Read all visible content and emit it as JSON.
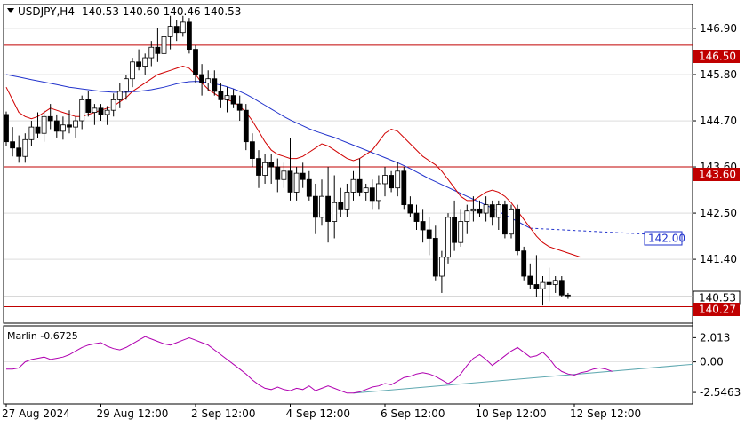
{
  "header": {
    "symbol_text": "USDJPY,H4",
    "ohlc_text": "140.53 140.60 140.46 140.53"
  },
  "indicator": {
    "label_text": "Marlin -0.6725",
    "ticks": [
      "2.013",
      "0.00",
      "-2.5463"
    ],
    "tick_values": [
      2.013,
      0.0,
      -2.5463
    ],
    "ylim": [
      -3.5,
      3.0
    ],
    "line_color": "#b000b0",
    "trend_color": "#5fa8b0",
    "values": [
      -0.6,
      -0.6,
      -0.5,
      0.0,
      0.2,
      0.3,
      0.4,
      0.2,
      0.3,
      0.4,
      0.6,
      0.9,
      1.2,
      1.4,
      1.5,
      1.6,
      1.3,
      1.1,
      1.0,
      1.2,
      1.5,
      1.8,
      2.1,
      1.9,
      1.7,
      1.5,
      1.4,
      1.6,
      1.8,
      2.0,
      1.8,
      1.6,
      1.4,
      1.0,
      0.6,
      0.2,
      -0.2,
      -0.6,
      -1.0,
      -1.5,
      -1.9,
      -2.2,
      -2.3,
      -2.1,
      -2.3,
      -2.4,
      -2.2,
      -2.3,
      -2.0,
      -2.4,
      -2.2,
      -2.0,
      -2.2,
      -2.4,
      -2.6,
      -2.6,
      -2.5,
      -2.3,
      -2.1,
      -2.0,
      -1.8,
      -1.9,
      -1.6,
      -1.3,
      -1.2,
      -1.0,
      -0.9,
      -1.0,
      -1.2,
      -1.5,
      -1.8,
      -1.5,
      -1.0,
      -0.3,
      0.3,
      0.6,
      0.2,
      -0.3,
      0.1,
      0.5,
      0.9,
      1.2,
      0.8,
      0.4,
      0.5,
      0.8,
      0.3,
      -0.4,
      -0.8,
      -1.0,
      -1.1,
      -0.9,
      -0.8,
      -0.6,
      -0.5,
      -0.6,
      -0.8
    ]
  },
  "labels": {
    "level_146_50": "146.50",
    "level_143_60": "143.60",
    "level_142_00": "142.00",
    "level_140_27": "140.27",
    "current_price": "140.53"
  },
  "colors": {
    "background": "#ffffff",
    "grid": "#c8c8c8",
    "bull": "#ffffff",
    "bear": "#000000",
    "fast_ma": "#d00000",
    "slow_ma": "#2233cc",
    "level_line": "#c00000",
    "target_label": "#2233cc"
  },
  "chart_data": {
    "type": "candlestick",
    "symbol": "USDJPY",
    "timeframe": "H4",
    "ylim": [
      139.88,
      147.47
    ],
    "y_ticks": [
      146.9,
      145.8,
      144.7,
      143.6,
      142.5,
      141.4
    ],
    "x_tick_labels": [
      "27 Aug 2024",
      "29 Aug 12:00",
      "2 Sep 12:00",
      "4 Sep 12:00",
      "6 Sep 12:00",
      "10 Sep 12:00",
      "12 Sep 12:00"
    ],
    "x_tick_index": [
      0,
      15,
      30,
      45,
      60,
      75,
      90
    ],
    "horizontal_levels": [
      146.5,
      143.6,
      140.27
    ],
    "target_level": 142.0,
    "current_price": 140.53,
    "candles": [
      [
        144.85,
        144.92,
        144.1,
        144.2
      ],
      [
        144.2,
        144.55,
        143.85,
        144.05
      ],
      [
        144.05,
        144.35,
        143.7,
        143.85
      ],
      [
        143.85,
        144.4,
        143.7,
        144.25
      ],
      [
        144.25,
        144.7,
        144.1,
        144.55
      ],
      [
        144.55,
        144.9,
        144.3,
        144.4
      ],
      [
        144.4,
        144.95,
        144.2,
        144.8
      ],
      [
        144.8,
        145.1,
        144.5,
        144.7
      ],
      [
        144.7,
        144.85,
        144.3,
        144.45
      ],
      [
        144.45,
        144.8,
        144.25,
        144.6
      ],
      [
        144.6,
        144.95,
        144.4,
        144.55
      ],
      [
        144.55,
        144.8,
        144.3,
        144.7
      ],
      [
        144.7,
        145.3,
        144.5,
        145.2
      ],
      [
        145.2,
        145.4,
        144.8,
        144.9
      ],
      [
        144.9,
        145.1,
        144.6,
        145.0
      ],
      [
        145.0,
        145.1,
        144.7,
        144.85
      ],
      [
        144.85,
        145.05,
        144.6,
        144.95
      ],
      [
        144.95,
        145.35,
        144.8,
        145.2
      ],
      [
        145.2,
        145.6,
        145.0,
        145.4
      ],
      [
        145.4,
        145.8,
        145.2,
        145.7
      ],
      [
        145.7,
        146.2,
        145.5,
        146.1
      ],
      [
        146.1,
        146.4,
        145.9,
        146.0
      ],
      [
        146.0,
        146.3,
        145.8,
        146.2
      ],
      [
        146.2,
        146.6,
        146.0,
        146.45
      ],
      [
        146.45,
        146.9,
        146.1,
        146.3
      ],
      [
        146.3,
        146.8,
        146.1,
        146.7
      ],
      [
        146.7,
        147.2,
        146.4,
        146.95
      ],
      [
        146.95,
        147.1,
        146.6,
        146.8
      ],
      [
        146.8,
        147.2,
        146.7,
        147.05
      ],
      [
        147.05,
        147.15,
        146.3,
        146.4
      ],
      [
        146.4,
        146.5,
        145.6,
        145.8
      ],
      [
        145.8,
        146.05,
        145.3,
        145.6
      ],
      [
        145.6,
        145.9,
        145.4,
        145.7
      ],
      [
        145.7,
        145.9,
        145.3,
        145.4
      ],
      [
        145.4,
        145.6,
        145.0,
        145.2
      ],
      [
        145.2,
        145.5,
        144.9,
        145.3
      ],
      [
        145.3,
        145.45,
        145.0,
        145.1
      ],
      [
        145.1,
        145.3,
        144.7,
        144.95
      ],
      [
        144.95,
        145.1,
        144.0,
        144.2
      ],
      [
        144.2,
        144.4,
        143.6,
        143.8
      ],
      [
        143.8,
        144.0,
        143.1,
        143.4
      ],
      [
        143.4,
        143.9,
        143.2,
        143.7
      ],
      [
        143.7,
        143.9,
        143.2,
        143.6
      ],
      [
        143.6,
        143.8,
        143.0,
        143.3
      ],
      [
        143.3,
        143.7,
        143.1,
        143.5
      ],
      [
        143.5,
        144.3,
        142.8,
        143.0
      ],
      [
        143.0,
        143.6,
        142.8,
        143.45
      ],
      [
        143.45,
        143.7,
        143.1,
        143.3
      ],
      [
        143.3,
        143.5,
        142.8,
        142.9
      ],
      [
        142.9,
        143.2,
        142.0,
        142.4
      ],
      [
        142.4,
        143.3,
        142.2,
        142.9
      ],
      [
        142.9,
        143.6,
        141.8,
        142.3
      ],
      [
        142.3,
        143.4,
        141.9,
        142.75
      ],
      [
        142.75,
        143.1,
        142.4,
        142.6
      ],
      [
        142.6,
        143.2,
        142.4,
        143.0
      ],
      [
        143.0,
        143.5,
        142.8,
        143.3
      ],
      [
        143.3,
        143.8,
        142.9,
        143.0
      ],
      [
        143.0,
        143.2,
        142.8,
        143.1
      ],
      [
        143.1,
        143.3,
        142.6,
        142.8
      ],
      [
        142.8,
        143.4,
        142.6,
        143.2
      ],
      [
        143.2,
        143.6,
        142.9,
        143.4
      ],
      [
        143.4,
        143.5,
        143.0,
        143.1
      ],
      [
        143.1,
        143.7,
        142.9,
        143.5
      ],
      [
        143.5,
        143.6,
        142.6,
        142.7
      ],
      [
        142.7,
        142.9,
        142.4,
        142.5
      ],
      [
        142.5,
        142.7,
        142.1,
        142.3
      ],
      [
        142.3,
        142.6,
        141.8,
        142.1
      ],
      [
        142.1,
        142.4,
        141.5,
        141.9
      ],
      [
        141.9,
        142.2,
        140.9,
        141.0
      ],
      [
        141.0,
        141.6,
        140.6,
        141.45
      ],
      [
        141.45,
        142.5,
        141.3,
        142.4
      ],
      [
        142.4,
        142.8,
        141.6,
        141.8
      ],
      [
        141.8,
        142.6,
        141.7,
        142.3
      ],
      [
        142.3,
        142.7,
        142.0,
        142.55
      ],
      [
        142.55,
        142.9,
        142.3,
        142.6
      ],
      [
        142.6,
        142.8,
        142.4,
        142.5
      ],
      [
        142.5,
        142.9,
        142.3,
        142.7
      ],
      [
        142.7,
        142.8,
        142.2,
        142.4
      ],
      [
        142.4,
        142.8,
        142.1,
        142.7
      ],
      [
        142.7,
        142.8,
        141.9,
        142.0
      ],
      [
        142.0,
        142.7,
        141.9,
        142.6
      ],
      [
        142.6,
        142.7,
        141.5,
        141.6
      ],
      [
        141.6,
        141.7,
        140.9,
        141.0
      ],
      [
        141.0,
        141.3,
        140.7,
        140.8
      ],
      [
        140.8,
        141.5,
        140.5,
        140.7
      ],
      [
        140.7,
        141.0,
        140.3,
        140.85
      ],
      [
        140.85,
        141.2,
        140.4,
        140.8
      ],
      [
        140.8,
        141.0,
        140.6,
        140.9
      ],
      [
        140.9,
        141.0,
        140.5,
        140.55
      ],
      [
        140.55,
        140.6,
        140.46,
        140.53
      ]
    ],
    "ma_fast": [
      145.5,
      145.2,
      144.9,
      144.8,
      144.75,
      144.8,
      144.9,
      145.0,
      144.95,
      144.9,
      144.85,
      144.8,
      144.8,
      144.85,
      144.9,
      144.95,
      145.0,
      145.05,
      145.15,
      145.25,
      145.4,
      145.5,
      145.6,
      145.7,
      145.8,
      145.85,
      145.9,
      145.95,
      146.0,
      145.95,
      145.8,
      145.6,
      145.45,
      145.35,
      145.25,
      145.2,
      145.15,
      145.05,
      144.9,
      144.7,
      144.45,
      144.2,
      144.0,
      143.9,
      143.85,
      143.8,
      143.8,
      143.85,
      143.95,
      144.05,
      144.15,
      144.1,
      144.0,
      143.9,
      143.8,
      143.75,
      143.8,
      143.9,
      144.0,
      144.2,
      144.4,
      144.5,
      144.45,
      144.3,
      144.15,
      144.0,
      143.85,
      143.75,
      143.65,
      143.5,
      143.3,
      143.1,
      142.9,
      142.8,
      142.8,
      142.9,
      143.0,
      143.05,
      143.0,
      142.9,
      142.75,
      142.55,
      142.35,
      142.15,
      141.95,
      141.8,
      141.7,
      141.65,
      141.6,
      141.55,
      141.5,
      141.45
    ],
    "ma_slow": [
      145.8,
      145.77,
      145.74,
      145.71,
      145.68,
      145.65,
      145.62,
      145.59,
      145.56,
      145.53,
      145.5,
      145.48,
      145.46,
      145.44,
      145.42,
      145.4,
      145.39,
      145.38,
      145.38,
      145.38,
      145.39,
      145.4,
      145.42,
      145.44,
      145.47,
      145.5,
      145.54,
      145.58,
      145.61,
      145.63,
      145.64,
      145.63,
      145.61,
      145.58,
      145.55,
      145.51,
      145.46,
      145.4,
      145.33,
      145.25,
      145.16,
      145.07,
      144.98,
      144.89,
      144.8,
      144.72,
      144.65,
      144.58,
      144.51,
      144.45,
      144.4,
      144.35,
      144.3,
      144.24,
      144.18,
      144.12,
      144.06,
      144.0,
      143.94,
      143.88,
      143.82,
      143.76,
      143.7,
      143.63,
      143.56,
      143.48,
      143.4,
      143.32,
      143.25,
      143.18,
      143.11,
      143.04,
      142.97,
      142.9,
      142.83,
      142.76,
      142.69,
      142.62,
      142.54,
      142.46,
      142.38,
      142.3,
      142.22,
      142.14
    ],
    "ma_slow_projection": [
      142.14,
      142.0
    ]
  }
}
